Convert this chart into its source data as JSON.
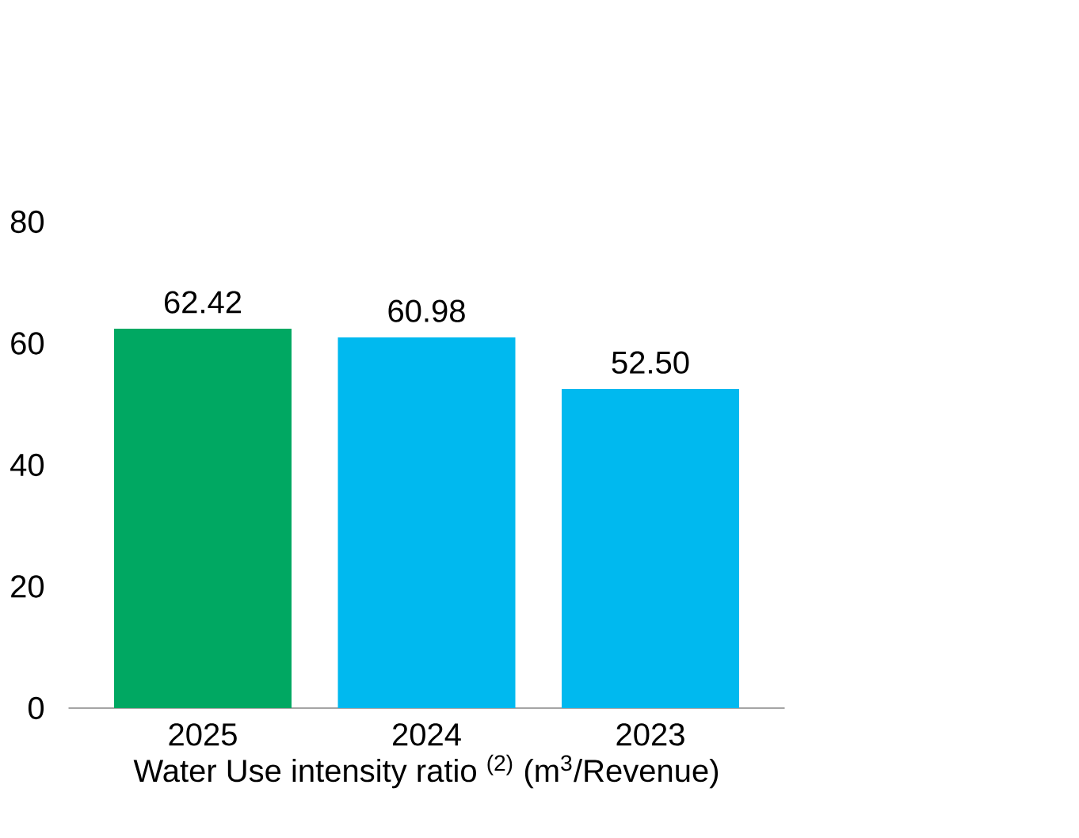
{
  "chart_data": {
    "type": "bar",
    "xlabel": "Water Use intensity ratio $^{(2)}$ (m$^{3}$/Revenue)",
    "categories": [
      "2025",
      "2024",
      "2023"
    ],
    "values": [
      62.42,
      60.98,
      52.5
    ],
    "value_labels": [
      "62.42",
      "60.98",
      "52.50"
    ],
    "colors": [
      "#00a862",
      "#00b9ef",
      "#00b9ef"
    ],
    "ylim": [
      0,
      80
    ],
    "yticks": [
      0,
      20,
      40,
      60,
      80
    ]
  }
}
